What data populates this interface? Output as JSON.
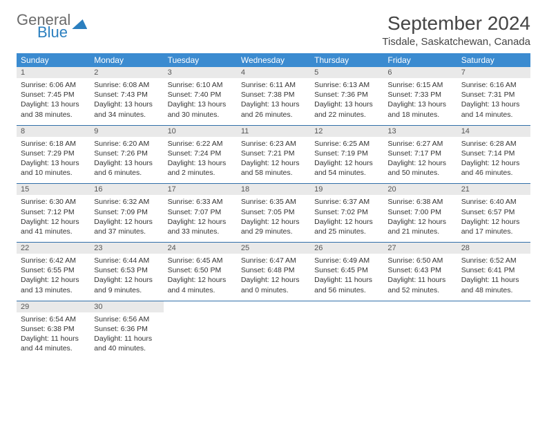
{
  "logo": {
    "word1": "General",
    "word2": "Blue"
  },
  "title": "September 2024",
  "location": "Tisdale, Saskatchewan, Canada",
  "colors": {
    "header_bg": "#3b8bd0",
    "header_text": "#ffffff",
    "daynum_bg": "#e9e9e9",
    "row_divider": "#2f6ea8",
    "logo_gray": "#6b6b6b",
    "logo_blue": "#2b7fbf",
    "body_text": "#333333"
  },
  "weekdays": [
    "Sunday",
    "Monday",
    "Tuesday",
    "Wednesday",
    "Thursday",
    "Friday",
    "Saturday"
  ],
  "weeks": [
    [
      {
        "n": "1",
        "sunrise": "Sunrise: 6:06 AM",
        "sunset": "Sunset: 7:45 PM",
        "day": "Daylight: 13 hours and 38 minutes."
      },
      {
        "n": "2",
        "sunrise": "Sunrise: 6:08 AM",
        "sunset": "Sunset: 7:43 PM",
        "day": "Daylight: 13 hours and 34 minutes."
      },
      {
        "n": "3",
        "sunrise": "Sunrise: 6:10 AM",
        "sunset": "Sunset: 7:40 PM",
        "day": "Daylight: 13 hours and 30 minutes."
      },
      {
        "n": "4",
        "sunrise": "Sunrise: 6:11 AM",
        "sunset": "Sunset: 7:38 PM",
        "day": "Daylight: 13 hours and 26 minutes."
      },
      {
        "n": "5",
        "sunrise": "Sunrise: 6:13 AM",
        "sunset": "Sunset: 7:36 PM",
        "day": "Daylight: 13 hours and 22 minutes."
      },
      {
        "n": "6",
        "sunrise": "Sunrise: 6:15 AM",
        "sunset": "Sunset: 7:33 PM",
        "day": "Daylight: 13 hours and 18 minutes."
      },
      {
        "n": "7",
        "sunrise": "Sunrise: 6:16 AM",
        "sunset": "Sunset: 7:31 PM",
        "day": "Daylight: 13 hours and 14 minutes."
      }
    ],
    [
      {
        "n": "8",
        "sunrise": "Sunrise: 6:18 AM",
        "sunset": "Sunset: 7:29 PM",
        "day": "Daylight: 13 hours and 10 minutes."
      },
      {
        "n": "9",
        "sunrise": "Sunrise: 6:20 AM",
        "sunset": "Sunset: 7:26 PM",
        "day": "Daylight: 13 hours and 6 minutes."
      },
      {
        "n": "10",
        "sunrise": "Sunrise: 6:22 AM",
        "sunset": "Sunset: 7:24 PM",
        "day": "Daylight: 13 hours and 2 minutes."
      },
      {
        "n": "11",
        "sunrise": "Sunrise: 6:23 AM",
        "sunset": "Sunset: 7:21 PM",
        "day": "Daylight: 12 hours and 58 minutes."
      },
      {
        "n": "12",
        "sunrise": "Sunrise: 6:25 AM",
        "sunset": "Sunset: 7:19 PM",
        "day": "Daylight: 12 hours and 54 minutes."
      },
      {
        "n": "13",
        "sunrise": "Sunrise: 6:27 AM",
        "sunset": "Sunset: 7:17 PM",
        "day": "Daylight: 12 hours and 50 minutes."
      },
      {
        "n": "14",
        "sunrise": "Sunrise: 6:28 AM",
        "sunset": "Sunset: 7:14 PM",
        "day": "Daylight: 12 hours and 46 minutes."
      }
    ],
    [
      {
        "n": "15",
        "sunrise": "Sunrise: 6:30 AM",
        "sunset": "Sunset: 7:12 PM",
        "day": "Daylight: 12 hours and 41 minutes."
      },
      {
        "n": "16",
        "sunrise": "Sunrise: 6:32 AM",
        "sunset": "Sunset: 7:09 PM",
        "day": "Daylight: 12 hours and 37 minutes."
      },
      {
        "n": "17",
        "sunrise": "Sunrise: 6:33 AM",
        "sunset": "Sunset: 7:07 PM",
        "day": "Daylight: 12 hours and 33 minutes."
      },
      {
        "n": "18",
        "sunrise": "Sunrise: 6:35 AM",
        "sunset": "Sunset: 7:05 PM",
        "day": "Daylight: 12 hours and 29 minutes."
      },
      {
        "n": "19",
        "sunrise": "Sunrise: 6:37 AM",
        "sunset": "Sunset: 7:02 PM",
        "day": "Daylight: 12 hours and 25 minutes."
      },
      {
        "n": "20",
        "sunrise": "Sunrise: 6:38 AM",
        "sunset": "Sunset: 7:00 PM",
        "day": "Daylight: 12 hours and 21 minutes."
      },
      {
        "n": "21",
        "sunrise": "Sunrise: 6:40 AM",
        "sunset": "Sunset: 6:57 PM",
        "day": "Daylight: 12 hours and 17 minutes."
      }
    ],
    [
      {
        "n": "22",
        "sunrise": "Sunrise: 6:42 AM",
        "sunset": "Sunset: 6:55 PM",
        "day": "Daylight: 12 hours and 13 minutes."
      },
      {
        "n": "23",
        "sunrise": "Sunrise: 6:44 AM",
        "sunset": "Sunset: 6:53 PM",
        "day": "Daylight: 12 hours and 9 minutes."
      },
      {
        "n": "24",
        "sunrise": "Sunrise: 6:45 AM",
        "sunset": "Sunset: 6:50 PM",
        "day": "Daylight: 12 hours and 4 minutes."
      },
      {
        "n": "25",
        "sunrise": "Sunrise: 6:47 AM",
        "sunset": "Sunset: 6:48 PM",
        "day": "Daylight: 12 hours and 0 minutes."
      },
      {
        "n": "26",
        "sunrise": "Sunrise: 6:49 AM",
        "sunset": "Sunset: 6:45 PM",
        "day": "Daylight: 11 hours and 56 minutes."
      },
      {
        "n": "27",
        "sunrise": "Sunrise: 6:50 AM",
        "sunset": "Sunset: 6:43 PM",
        "day": "Daylight: 11 hours and 52 minutes."
      },
      {
        "n": "28",
        "sunrise": "Sunrise: 6:52 AM",
        "sunset": "Sunset: 6:41 PM",
        "day": "Daylight: 11 hours and 48 minutes."
      }
    ],
    [
      {
        "n": "29",
        "sunrise": "Sunrise: 6:54 AM",
        "sunset": "Sunset: 6:38 PM",
        "day": "Daylight: 11 hours and 44 minutes."
      },
      {
        "n": "30",
        "sunrise": "Sunrise: 6:56 AM",
        "sunset": "Sunset: 6:36 PM",
        "day": "Daylight: 11 hours and 40 minutes."
      },
      null,
      null,
      null,
      null,
      null
    ]
  ]
}
